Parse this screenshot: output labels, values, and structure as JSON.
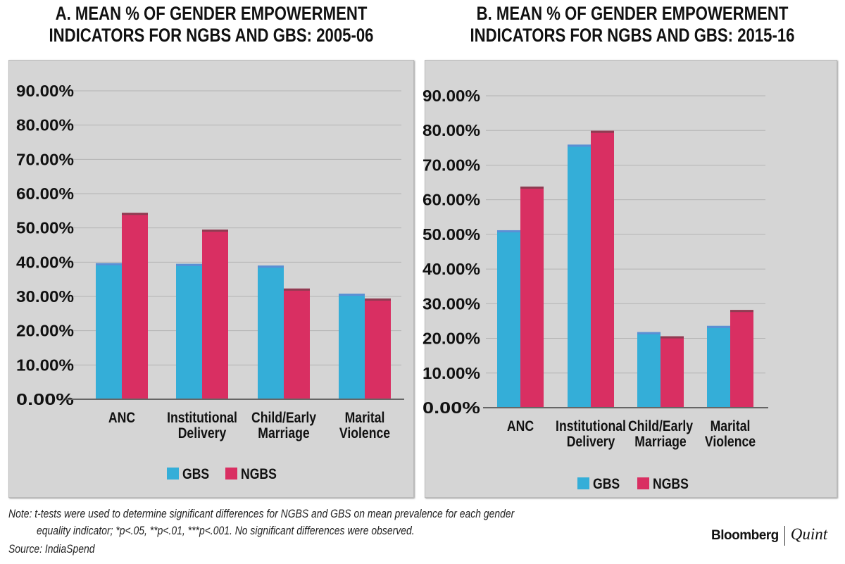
{
  "chart_data": [
    {
      "type": "bar",
      "title": "A. MEAN % OF GENDER EMPOWERMENT INDICATORS FOR NGBS AND GBS: 2005-06",
      "title_lines": [
        "A. MEAN % OF GENDER EMPOWERMENT",
        "INDICATORS FOR NGBS AND GBS: 2005-06"
      ],
      "categories": [
        [
          "ANC"
        ],
        [
          "Institutional",
          "Delivery"
        ],
        [
          "Child/Early",
          "Marriage"
        ],
        [
          "Marital",
          "Violence"
        ]
      ],
      "series": [
        {
          "name": "GBS",
          "color": "#34aed8",
          "values": [
            39.7,
            39.5,
            39.0,
            30.8
          ]
        },
        {
          "name": "NGBS",
          "color": "#d92f62",
          "values": [
            54.4,
            49.5,
            32.3,
            29.4
          ]
        }
      ],
      "ylim": [
        0,
        90
      ],
      "yticks": [
        "0.00%",
        "10.00%",
        "20.00%",
        "30.00%",
        "40.00%",
        "50.00%",
        "60.00%",
        "70.00%",
        "80.00%",
        "90.00%"
      ],
      "grid": true,
      "legend": "bottom"
    },
    {
      "type": "bar",
      "title": "B. MEAN % OF GENDER EMPOWERMENT INDICATORS FOR NGBS AND GBS: 2015-16",
      "title_lines": [
        "B. MEAN % OF GENDER EMPOWERMENT",
        "INDICATORS FOR NGBS AND GBS: 2015-16"
      ],
      "categories": [
        [
          "ANC"
        ],
        [
          "Institutional",
          "Delivery"
        ],
        [
          "Child/Early",
          "Marriage"
        ],
        [
          "Marital",
          "Violence"
        ]
      ],
      "series": [
        {
          "name": "GBS",
          "color": "#34aed8",
          "values": [
            51.2,
            75.9,
            21.8,
            23.6
          ]
        },
        {
          "name": "NGBS",
          "color": "#d92f62",
          "values": [
            63.8,
            79.9,
            20.6,
            28.2
          ]
        }
      ],
      "ylim": [
        0,
        90
      ],
      "yticks": [
        "0.00%",
        "10.00%",
        "20.00%",
        "30.00%",
        "40.00%",
        "50.00%",
        "60.00%",
        "70.00%",
        "80.00%",
        "90.00%"
      ],
      "grid": true,
      "legend": "bottom"
    }
  ],
  "footer": {
    "note_line1": "Note: t-tests were used to determine significant differences for NGBS and GBS on mean prevalence for each gender",
    "note_line2": "equality indicator; *p<.05, **p<.01, ***p<.001. No significant differences were observed.",
    "source": "Source: IndiaSpend",
    "logo_left": "Bloomberg",
    "logo_right": "Quint"
  }
}
